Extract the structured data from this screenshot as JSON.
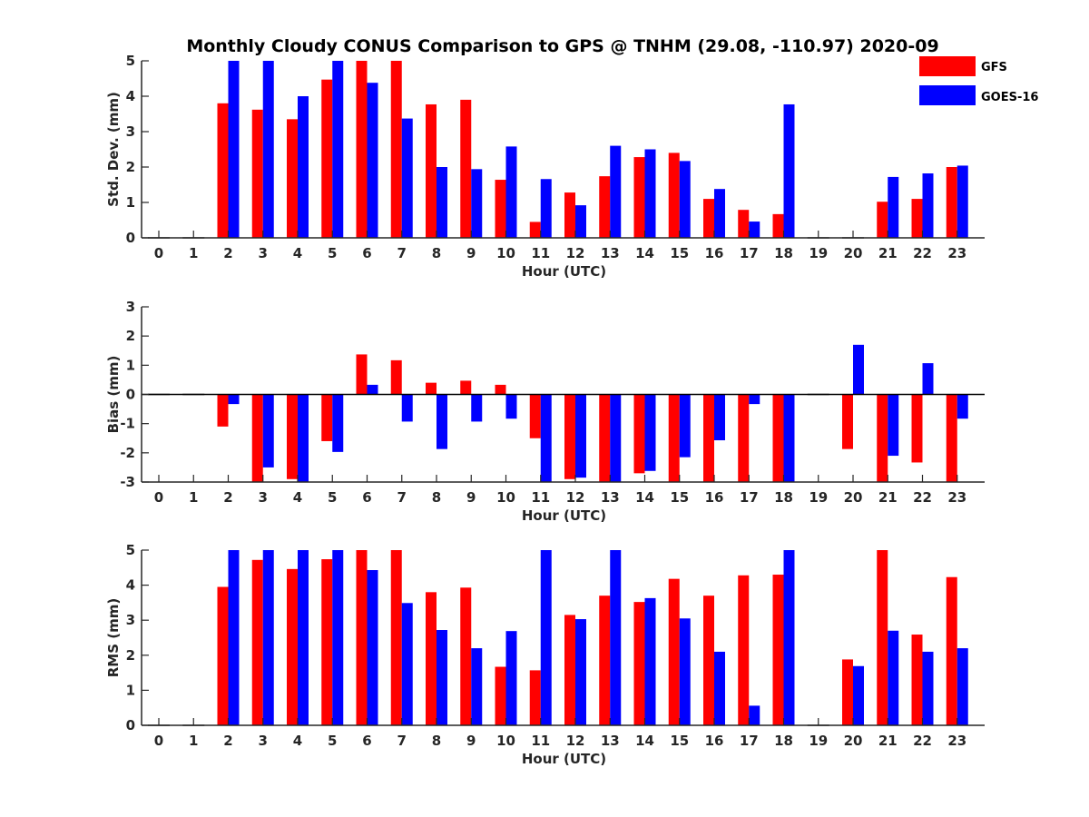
{
  "figure": {
    "title": "Monthly Cloudy CONUS Comparison to GPS @ TNHM (29.08, -110.97) 2020-09",
    "legend": [
      {
        "name": "GFS",
        "color": "#ff0000"
      },
      {
        "name": "GOES-16",
        "color": "#0000ff"
      }
    ]
  },
  "chart_data": [
    {
      "type": "bar",
      "title": "Monthly Cloudy CONUS Comparison to GPS @ TNHM (29.08, -110.97) 2020-09",
      "xlabel": "Hour (UTC)",
      "ylabel": "Std. Dev. (mm)",
      "categories": [
        "0",
        "1",
        "2",
        "3",
        "4",
        "5",
        "6",
        "7",
        "8",
        "9",
        "10",
        "11",
        "12",
        "13",
        "14",
        "15",
        "16",
        "17",
        "18",
        "19",
        "20",
        "21",
        "22",
        "23"
      ],
      "ylim": [
        0,
        5
      ],
      "yticks": [
        0,
        1,
        2,
        3,
        4,
        5
      ],
      "legend_position": "top-right",
      "grid": false,
      "series": [
        {
          "name": "GFS",
          "color": "#ff0000",
          "values": [
            null,
            null,
            3.8,
            3.62,
            3.35,
            4.47,
            5.0,
            5.0,
            3.77,
            3.9,
            1.64,
            0.45,
            1.28,
            1.74,
            2.28,
            2.4,
            1.1,
            0.79,
            0.67,
            null,
            null,
            1.02,
            1.1,
            2.0
          ]
        },
        {
          "name": "GOES-16",
          "color": "#0000ff",
          "values": [
            null,
            null,
            5.0,
            5.0,
            4.0,
            5.0,
            4.38,
            3.37,
            2.0,
            1.94,
            2.58,
            1.66,
            0.92,
            2.6,
            2.5,
            2.17,
            1.38,
            0.46,
            3.77,
            null,
            null,
            1.72,
            1.82,
            2.04
          ]
        }
      ]
    },
    {
      "type": "bar",
      "xlabel": "Hour (UTC)",
      "ylabel": "Bias (mm)",
      "categories": [
        "0",
        "1",
        "2",
        "3",
        "4",
        "5",
        "6",
        "7",
        "8",
        "9",
        "10",
        "11",
        "12",
        "13",
        "14",
        "15",
        "16",
        "17",
        "18",
        "19",
        "20",
        "21",
        "22",
        "23"
      ],
      "ylim": [
        -3,
        3
      ],
      "yticks": [
        -3,
        -2,
        -1,
        0,
        1,
        2,
        3
      ],
      "grid": false,
      "zero_line": true,
      "series": [
        {
          "name": "GFS",
          "color": "#ff0000",
          "values": [
            null,
            null,
            -1.1,
            -3.0,
            -2.9,
            -1.6,
            1.37,
            1.17,
            0.4,
            0.47,
            0.33,
            -1.5,
            -2.9,
            -3.0,
            -2.7,
            -3.0,
            -3.0,
            -3.0,
            -3.0,
            null,
            -1.87,
            -3.0,
            -2.33,
            -3.0
          ]
        },
        {
          "name": "GOES-16",
          "color": "#0000ff",
          "values": [
            null,
            null,
            -0.33,
            -2.5,
            -3.0,
            -1.97,
            0.33,
            -0.93,
            -1.87,
            -0.93,
            -0.83,
            -3.0,
            -2.85,
            -3.0,
            -2.62,
            -2.15,
            -1.57,
            -0.33,
            -3.0,
            null,
            1.7,
            -2.1,
            1.07,
            -0.83
          ]
        }
      ]
    },
    {
      "type": "bar",
      "xlabel": "Hour (UTC)",
      "ylabel": "RMS (mm)",
      "categories": [
        "0",
        "1",
        "2",
        "3",
        "4",
        "5",
        "6",
        "7",
        "8",
        "9",
        "10",
        "11",
        "12",
        "13",
        "14",
        "15",
        "16",
        "17",
        "18",
        "19",
        "20",
        "21",
        "22",
        "23"
      ],
      "ylim": [
        0,
        5
      ],
      "yticks": [
        0,
        1,
        2,
        3,
        4,
        5
      ],
      "grid": false,
      "series": [
        {
          "name": "GFS",
          "color": "#ff0000",
          "values": [
            null,
            null,
            3.95,
            4.72,
            4.46,
            4.74,
            5.0,
            5.0,
            3.8,
            3.93,
            1.67,
            1.57,
            3.15,
            3.7,
            3.52,
            4.18,
            3.7,
            4.28,
            4.3,
            null,
            1.88,
            5.0,
            2.59,
            4.23
          ]
        },
        {
          "name": "GOES-16",
          "color": "#0000ff",
          "values": [
            null,
            null,
            5.0,
            5.0,
            5.0,
            5.0,
            4.43,
            3.49,
            2.72,
            2.2,
            2.69,
            5.0,
            3.03,
            5.0,
            3.63,
            3.05,
            2.1,
            0.56,
            5.0,
            null,
            1.69,
            2.7,
            2.1,
            2.2
          ]
        }
      ]
    }
  ]
}
